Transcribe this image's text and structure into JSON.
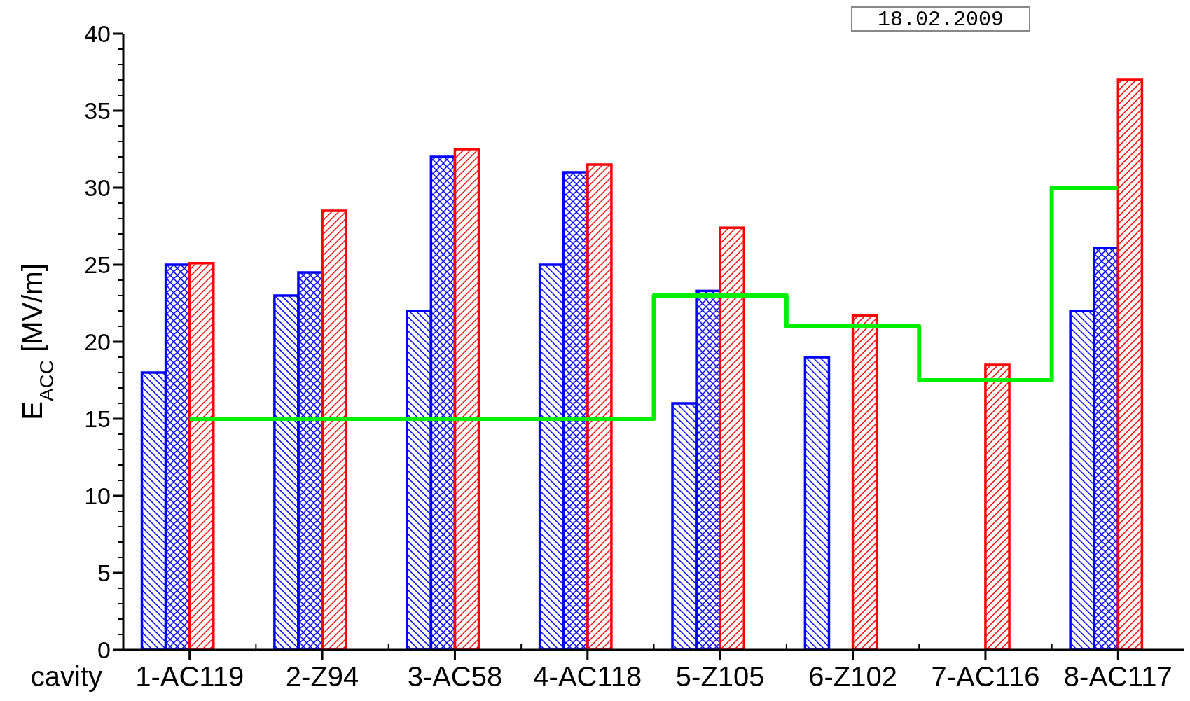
{
  "chart_data": {
    "type": "bar",
    "xlabel": "cavity",
    "ylabel": "E$_{ACC}$ [MV/m]",
    "annotations": [
      "18.02.2009"
    ],
    "categories": [
      "1-AC119",
      "2-Z94",
      "3-AC58",
      "4-AC118",
      "5-Z105",
      "6-Z102",
      "7-AC116",
      "8-AC117"
    ],
    "series": [
      {
        "color": "#0000ff",
        "values": [
          18,
          23,
          22,
          25,
          16,
          19,
          null,
          22
        ]
      },
      {
        "color": "#0000ff",
        "values": [
          25,
          24.5,
          32,
          31,
          23.3,
          null,
          null,
          26.1
        ]
      },
      {
        "color": "#ff0000",
        "values": [
          25.1,
          28.5,
          32.5,
          31.5,
          27.4,
          21.7,
          18.5,
          37
        ]
      },
      {
        "type": "step",
        "color": "#00ee00",
        "values": [
          15,
          15,
          15,
          15,
          23,
          21,
          17.5,
          30
        ]
      }
    ],
    "ylim": [
      0,
      40
    ],
    "yticks": [
      0,
      5,
      10,
      15,
      20,
      25,
      30,
      35,
      40
    ],
    "grid": false
  }
}
